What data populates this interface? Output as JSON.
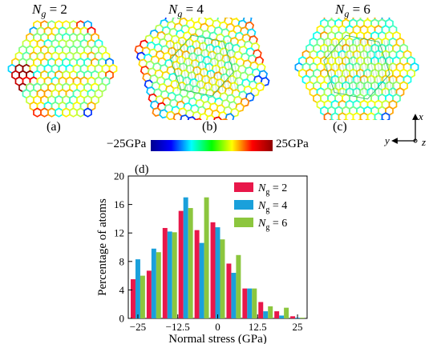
{
  "panels": {
    "a": {
      "title_prefix": "N",
      "title_sub": "g",
      "title_suffix": " = 2",
      "label": "(a)"
    },
    "b": {
      "title_prefix": "N",
      "title_sub": "g",
      "title_suffix": " = 4",
      "label": "(b)"
    },
    "c": {
      "title_prefix": "N",
      "title_sub": "g",
      "title_suffix": " = 6",
      "label": "(c)"
    },
    "d": {
      "label": "(d)"
    }
  },
  "colorbar": {
    "min_label": "−25GPa",
    "max_label": "25GPa",
    "colors": [
      "#00008f",
      "#0000ff",
      "#00ffff",
      "#00ff00",
      "#ffff00",
      "#ff0000",
      "#8f0000"
    ]
  },
  "axes": {
    "x": "x",
    "y": "y",
    "z": "z"
  },
  "chart_data": {
    "type": "bar",
    "xlabel": "Normal stress (GPa)",
    "ylabel": "Percentage of atoms",
    "ylim": [
      0,
      20
    ],
    "xlim": [
      -28,
      28
    ],
    "yticks": [
      0,
      4,
      8,
      12,
      16,
      20
    ],
    "xticks": [
      -25,
      -12.5,
      0,
      12.5,
      25
    ],
    "xtick_labels": [
      "−25",
      "−12.5",
      "0",
      "12.5",
      "25"
    ],
    "categories": [
      -25,
      -20,
      -15,
      -10,
      -5,
      0,
      5,
      10,
      15,
      20,
      25
    ],
    "legend_placement": "top-right",
    "series": [
      {
        "name": "Ng = 2",
        "name_main": "N",
        "name_sub": "g",
        "name_rest": " = 2",
        "color": "#e8174a",
        "values": [
          5.5,
          6.7,
          12.7,
          15.1,
          12.4,
          13.5,
          7.7,
          4.2,
          2.3,
          1.0,
          0.3
        ]
      },
      {
        "name": "Ng = 4",
        "name_main": "N",
        "name_sub": "g",
        "name_rest": " = 4",
        "color": "#1aa0db",
        "values": [
          8.3,
          9.8,
          12.2,
          17.0,
          10.6,
          12.8,
          6.4,
          4.2,
          1.0,
          0.4,
          0.1
        ]
      },
      {
        "name": "Ng = 6",
        "name_main": "N",
        "name_sub": "g",
        "name_rest": " = 6",
        "color": "#8cc63e",
        "values": [
          6.0,
          9.3,
          12.1,
          15.5,
          17.0,
          11.1,
          8.9,
          4.2,
          1.7,
          1.5,
          0.1
        ]
      }
    ]
  }
}
